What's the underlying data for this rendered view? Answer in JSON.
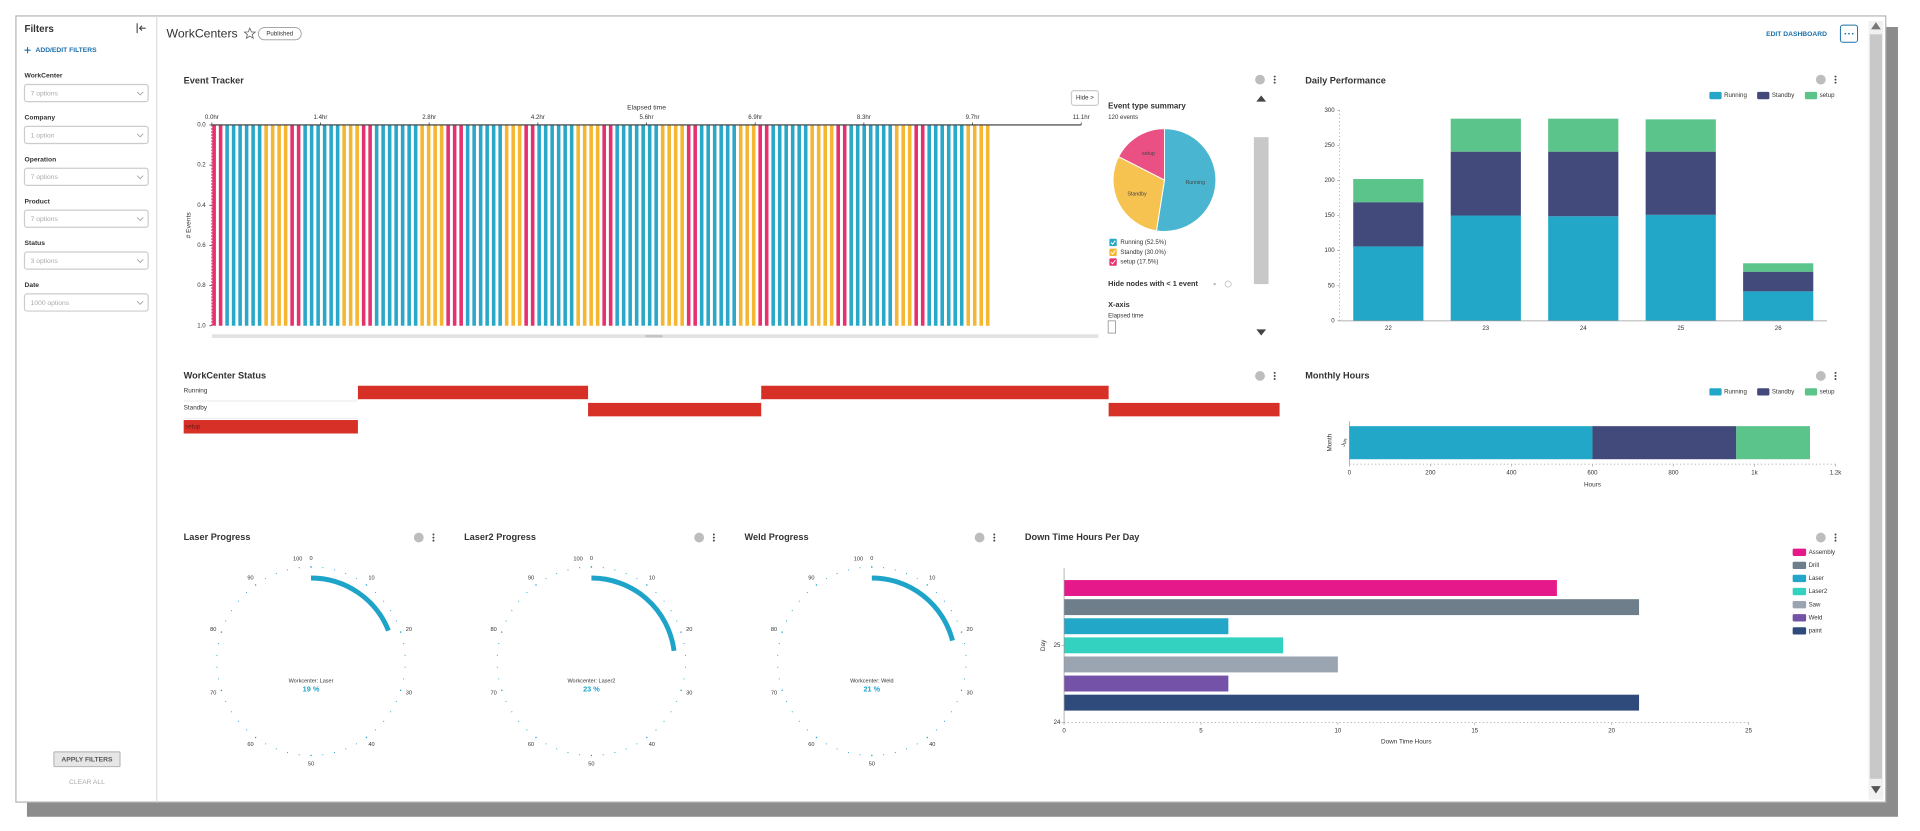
{
  "header": {
    "title": "WorkCenters",
    "badge": "Published",
    "edit_button": "EDIT DASHBOARD"
  },
  "sidebar": {
    "title": "Filters",
    "add_filters": "ADD/EDIT FILTERS",
    "filters": [
      {
        "label": "WorkCenter",
        "placeholder": "7 options"
      },
      {
        "label": "Company",
        "placeholder": "1 option"
      },
      {
        "label": "Operation",
        "placeholder": "7 options"
      },
      {
        "label": "Product",
        "placeholder": "7 options"
      },
      {
        "label": "Status",
        "placeholder": "3 options"
      },
      {
        "label": "Date",
        "placeholder": "1000 options"
      }
    ],
    "apply": "APPLY FILTERS",
    "clear": "CLEAR ALL"
  },
  "event_panel": {
    "hide_button": "Hide >",
    "hide_nodes": "Hide nodes with < 1 event",
    "x_axis": "X-axis",
    "x_axis_value": "Elapsed time"
  },
  "chart_data": [
    {
      "type": "event_strip",
      "title": "Event Tracker",
      "x_label": "Elapsed time",
      "y_label": "# Events",
      "xlim": [
        0,
        11.1
      ],
      "xticks": [
        {
          "value": 0,
          "label": "0.0hr"
        },
        {
          "value": 1.3875,
          "label": "1.4hr"
        },
        {
          "value": 2.775,
          "label": "2.8hr"
        },
        {
          "value": 4.1625,
          "label": "4.2hr"
        },
        {
          "value": 5.55,
          "label": "5.6hr"
        },
        {
          "value": 6.9375,
          "label": "6.9hr"
        },
        {
          "value": 8.325,
          "label": "8.3hr"
        },
        {
          "value": 9.7125,
          "label": "9.7hr"
        },
        {
          "value": 11.1,
          "label": "11.1hr"
        }
      ],
      "ylim": [
        0,
        1
      ],
      "yticks": [
        {
          "value": 0,
          "label": "0.0"
        },
        0.2,
        0.4,
        0.6,
        0.8,
        {
          "value": 1,
          "label": "1.0"
        }
      ],
      "inverted": true,
      "interval": 0.083,
      "segments": [
        {
          "type": "setup",
          "count": 2
        },
        {
          "type": "Running",
          "count": 6
        },
        {
          "type": "Standby",
          "count": 4
        },
        {
          "type": "setup",
          "count": 2
        },
        {
          "type": "Running",
          "count": 6
        },
        {
          "type": "Standby",
          "count": 3
        },
        {
          "type": "setup",
          "count": 2
        },
        {
          "type": "Running",
          "count": 7
        },
        {
          "type": "Standby",
          "count": 4
        },
        {
          "type": "setup",
          "count": 3
        },
        {
          "type": "Running",
          "count": 6
        },
        {
          "type": "Standby",
          "count": 3
        },
        {
          "type": "setup",
          "count": 2
        },
        {
          "type": "Running",
          "count": 6
        },
        {
          "type": "Standby",
          "count": 4
        },
        {
          "type": "setup",
          "count": 2
        },
        {
          "type": "Running",
          "count": 7
        },
        {
          "type": "Standby",
          "count": 4
        },
        {
          "type": "setup",
          "count": 2
        },
        {
          "type": "Running",
          "count": 6
        },
        {
          "type": "Standby",
          "count": 3
        },
        {
          "type": "setup",
          "count": 2
        },
        {
          "type": "Running",
          "count": 6
        },
        {
          "type": "Standby",
          "count": 4
        },
        {
          "type": "setup",
          "count": 2
        },
        {
          "type": "Running",
          "count": 7
        },
        {
          "type": "Standby",
          "count": 3
        },
        {
          "type": "setup",
          "count": 2
        },
        {
          "type": "Running",
          "count": 6
        },
        {
          "type": "Standby",
          "count": 4
        }
      ]
    },
    {
      "type": "pie",
      "title": "Event type summary",
      "subtitle": "120 events",
      "categories": [
        "Running",
        "Standby",
        "setup"
      ],
      "values": [
        52.5,
        30,
        17.5
      ],
      "value_labels": [
        "Running (52.5%)",
        "Standby (30.0%)",
        "setup (17.5%)"
      ],
      "colors": [
        "#2aa8c8",
        "#f5b731",
        "#e6316e"
      ]
    },
    {
      "type": "stacked_bar",
      "title": "Daily Performance",
      "categories": [
        "22",
        "23",
        "24",
        "25",
        "26"
      ],
      "series": [
        {
          "name": "Running",
          "color": "#22a7c9",
          "values": [
            106,
            150,
            149,
            151,
            42
          ]
        },
        {
          "name": "Standby",
          "color": "#414a7a",
          "values": [
            63,
            91,
            92,
            90,
            28
          ]
        },
        {
          "name": "setup",
          "color": "#5ac48a",
          "values": [
            33,
            47,
            47,
            46,
            12
          ]
        }
      ],
      "ylim": [
        0,
        300
      ],
      "yticks": [
        0,
        50,
        100,
        150,
        200,
        250,
        300
      ]
    },
    {
      "type": "gantt",
      "title": "WorkCenter Status",
      "rows": [
        "Running",
        "Standby",
        "setup"
      ],
      "color": "#d63027",
      "segments": [
        {
          "row": "setup",
          "start": 0,
          "end": 15.9
        },
        {
          "row": "Running",
          "start": 15.9,
          "end": 36.9
        },
        {
          "row": "Standby",
          "start": 36.9,
          "end": 52.7
        },
        {
          "row": "Running",
          "start": 52.7,
          "end": 84.4
        },
        {
          "row": "Standby",
          "start": 84.4,
          "end": 100
        }
      ]
    },
    {
      "type": "stacked_hbar",
      "title": "Monthly Hours",
      "categories": [
        "Jun"
      ],
      "x_label": "Hours",
      "y_label": "Month",
      "series": [
        {
          "name": "Running",
          "color": "#22a7c9",
          "values": [
            600
          ]
        },
        {
          "name": "Standby",
          "color": "#414a7a",
          "values": [
            355
          ]
        },
        {
          "name": "setup",
          "color": "#5ac48a",
          "values": [
            182
          ]
        }
      ],
      "xlim": [
        0,
        1200
      ],
      "xticks": [
        0,
        200,
        400,
        600,
        800,
        {
          "value": 1000,
          "label": "1k"
        },
        {
          "value": 1200,
          "label": "1.2k"
        }
      ]
    },
    {
      "type": "gauge",
      "title": "Laser Progress",
      "label": "Workcenter: Laser",
      "value": 19,
      "value_label": "19 %",
      "color": "#1ea4c8",
      "range": [
        0,
        100
      ],
      "ticks": [
        0,
        10,
        20,
        30,
        40,
        50,
        60,
        70,
        80,
        90,
        100
      ]
    },
    {
      "type": "gauge",
      "title": "Laser2 Progress",
      "label": "Workcenter: Laser2",
      "value": 23,
      "value_label": "23 %",
      "color": "#1ea4c8",
      "range": [
        0,
        100
      ],
      "ticks": [
        0,
        10,
        20,
        30,
        40,
        50,
        60,
        70,
        80,
        90,
        100
      ]
    },
    {
      "type": "gauge",
      "title": "Weld Progress",
      "label": "Workcenter: Weld",
      "value": 21,
      "value_label": "21 %",
      "color": "#1ea4c8",
      "range": [
        0,
        100
      ],
      "ticks": [
        0,
        10,
        20,
        30,
        40,
        50,
        60,
        70,
        80,
        90,
        100
      ]
    },
    {
      "type": "grouped_hbar",
      "title": "Down Time Hours Per Day",
      "x_label": "Down Time Hours",
      "y_label": "Day",
      "categories": [
        25
      ],
      "series": [
        {
          "name": "Assembly",
          "color": "#e5198a",
          "values": [
            18
          ]
        },
        {
          "name": "Drill",
          "color": "#6e7f8b",
          "values": [
            21
          ]
        },
        {
          "name": "Laser",
          "color": "#22a7c9",
          "values": [
            6
          ]
        },
        {
          "name": "Laser2",
          "color": "#33d1c0",
          "values": [
            8
          ]
        },
        {
          "name": "Saw",
          "color": "#9aa5b1",
          "values": [
            10
          ]
        },
        {
          "name": "Weld",
          "color": "#7452a8",
          "values": [
            6
          ]
        },
        {
          "name": "paint",
          "color": "#2f4b7c",
          "values": [
            21
          ]
        }
      ],
      "xlim": [
        0,
        25
      ],
      "xticks": [
        0,
        5,
        10,
        15,
        20,
        25
      ],
      "ylim": [
        24,
        26
      ],
      "yticks": [
        24,
        25
      ]
    }
  ]
}
